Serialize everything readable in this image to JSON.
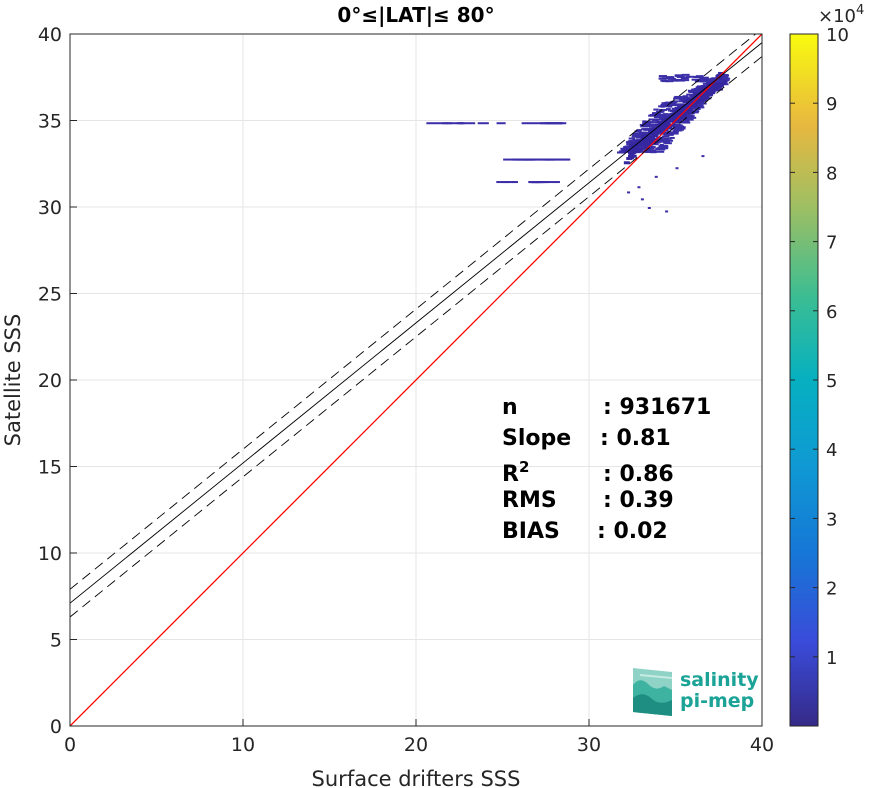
{
  "chart_data": {
    "type": "heatmap",
    "title": "0°≤|LAT|≤ 80°",
    "xlabel": "Surface drifters SSS",
    "ylabel": "Satellite SSS",
    "xlim": [
      0,
      40
    ],
    "ylim": [
      0,
      40
    ],
    "xticks": [
      "0",
      "10",
      "20",
      "30",
      "40"
    ],
    "yticks": [
      "0",
      "5",
      "10",
      "15",
      "20",
      "25",
      "30",
      "35",
      "40"
    ],
    "grid": true,
    "colorbar": {
      "range": [
        0,
        100000
      ],
      "ticks": [
        "1",
        "2",
        "3",
        "4",
        "5",
        "6",
        "7",
        "8",
        "9",
        "10"
      ],
      "exponent_label": "×10",
      "exponent": "4",
      "colormap": "parula"
    },
    "lines": [
      {
        "kind": "one-to-one",
        "color": "#ff0000",
        "slope": 1,
        "intercept": 0
      },
      {
        "kind": "regression",
        "color": "#000000",
        "style": "solid",
        "slope": 0.81,
        "intercept": 7.1
      },
      {
        "kind": "regression +2std",
        "color": "#000000",
        "style": "dashed",
        "slope": 0.81,
        "intercept": 7.9
      },
      {
        "kind": "regression -2std",
        "color": "#000000",
        "style": "dashed",
        "slope": 0.81,
        "intercept": 6.3
      }
    ],
    "density_cloud": {
      "core": [
        [
          31.5,
          33.6
        ],
        [
          37.5,
          37.8
        ]
      ],
      "horizontal_streaks": [
        {
          "x": [
            19.5,
            28.5
          ],
          "y": 34.9
        },
        {
          "x": [
            24.5,
            28.0
          ],
          "y": 32.8
        },
        {
          "x": [
            24.5,
            27.5
          ],
          "y": 31.5
        }
      ]
    },
    "stats": [
      {
        "label": "n",
        "sep": ": 931671"
      },
      {
        "label": "Slope",
        "sep": ": 0.81"
      },
      {
        "label": "R",
        "sup": "2",
        "sep": ": 0.86"
      },
      {
        "label": "RMS",
        "sep": ": 0.39"
      },
      {
        "label": "BIAS",
        "sep": ": 0.02"
      }
    ]
  },
  "logo": {
    "line1": "salinity",
    "line2": "pi-mep"
  }
}
